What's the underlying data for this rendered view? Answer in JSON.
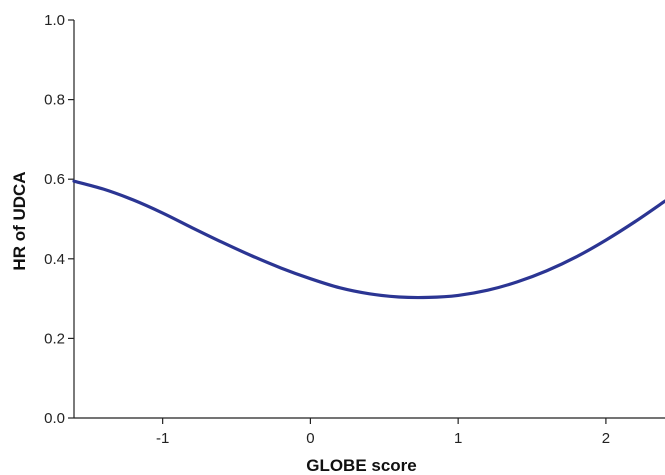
{
  "chart_data": {
    "type": "line",
    "title": "",
    "xlabel": "GLOBE score",
    "ylabel": "HR of UDCA",
    "xlim": [
      -1.6,
      2.4
    ],
    "ylim": [
      0.0,
      1.0
    ],
    "x_ticks": [
      -1,
      0,
      1,
      2
    ],
    "x_tick_labels": [
      "-1",
      "0",
      "1",
      "2"
    ],
    "y_ticks": [
      0.0,
      0.2,
      0.4,
      0.6,
      0.8,
      1.0
    ],
    "y_tick_labels": [
      "0.0",
      "0.2",
      "0.4",
      "0.6",
      "0.8",
      "1.0"
    ],
    "grid": false,
    "series": [
      {
        "color": "#2b3593",
        "x": [
          -1.6,
          -1.4,
          -1.2,
          -1.0,
          -0.8,
          -0.6,
          -0.4,
          -0.2,
          0.0,
          0.2,
          0.4,
          0.6,
          0.8,
          1.0,
          1.2,
          1.4,
          1.6,
          1.8,
          2.0,
          2.2,
          2.4
        ],
        "y": [
          0.595,
          0.575,
          0.548,
          0.515,
          0.478,
          0.442,
          0.408,
          0.377,
          0.35,
          0.327,
          0.312,
          0.304,
          0.303,
          0.308,
          0.321,
          0.342,
          0.37,
          0.405,
          0.447,
          0.494,
          0.545
        ]
      }
    ]
  }
}
